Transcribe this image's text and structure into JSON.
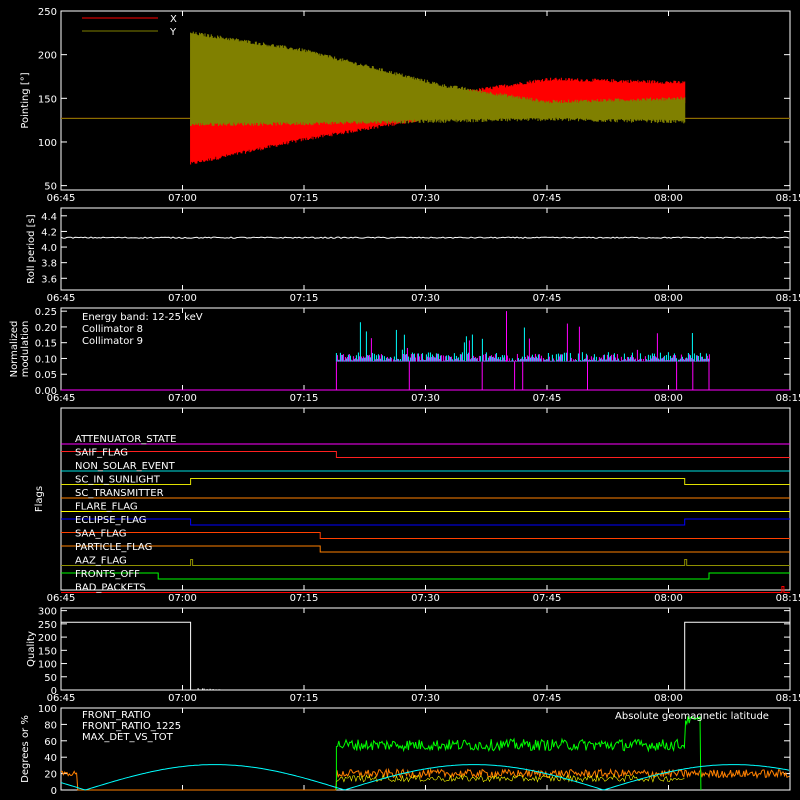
{
  "chart_data": [
    {
      "type": "line",
      "ylabel": "Pointing [°]",
      "ylim": [
        45,
        250
      ],
      "yticks": [
        "50",
        "100",
        "150",
        "200",
        "250"
      ],
      "xticks": [
        "06:45",
        "07:00",
        "07:15",
        "07:30",
        "07:45",
        "08:00",
        "08:15"
      ],
      "xlim_minutes": [
        405,
        495
      ],
      "legend": [
        {
          "label": "X",
          "color": "#ff0000"
        },
        {
          "label": "Y",
          "color": "#808000"
        }
      ],
      "legend_placement": "top-left",
      "series": [
        {
          "name": "X",
          "color": "#ff0000",
          "baseline": 127,
          "t_start": "07:01",
          "t_end": "08:02",
          "envelope_upper": [
            [
              421,
              125
            ],
            [
              435,
              131
            ],
            [
              452,
              153
            ],
            [
              465,
              172
            ],
            [
              482,
              168
            ]
          ],
          "envelope_lower": [
            [
              421,
              75
            ],
            [
              435,
              103
            ],
            [
              452,
              130
            ],
            [
              465,
              138
            ],
            [
              482,
              143
            ]
          ]
        },
        {
          "name": "Y",
          "color": "#808000",
          "baseline": 127,
          "t_start": "07:01",
          "t_end": "08:02",
          "envelope_upper": [
            [
              421,
              225
            ],
            [
              435,
              205
            ],
            [
              452,
              165
            ],
            [
              465,
              146
            ],
            [
              482,
              150
            ]
          ],
          "envelope_lower": [
            [
              421,
              120
            ],
            [
              435,
              121
            ],
            [
              452,
              124
            ],
            [
              465,
              126
            ],
            [
              482,
              123
            ]
          ]
        }
      ]
    },
    {
      "type": "line",
      "ylabel": "Roll period [s]",
      "ylim": [
        3.45,
        4.5
      ],
      "yticks": [
        "3.6",
        "3.8",
        "4.0",
        "4.2",
        "4.4"
      ],
      "xticks": [
        "06:45",
        "07:00",
        "07:15",
        "07:30",
        "07:45",
        "08:00",
        "08:15"
      ],
      "series": [
        {
          "name": "",
          "color": "#ffffff",
          "value": 4.12
        }
      ]
    },
    {
      "type": "bar",
      "ylabel": "Normalized modulation",
      "ylim": [
        0,
        0.26
      ],
      "yticks": [
        "0.00",
        "0.05",
        "0.10",
        "0.15",
        "0.20",
        "0.25"
      ],
      "xticks": [
        "06:45",
        "07:00",
        "07:15",
        "07:30",
        "07:45",
        "08:00",
        "08:15"
      ],
      "legend": [
        {
          "label": "Energy band: 12-25 keV",
          "color": "#ffffff"
        },
        {
          "label": "Collimator 8",
          "color": "#00ffff"
        },
        {
          "label": "Collimator 9",
          "color": "#ff00ff"
        }
      ],
      "legend_placement": "top-left",
      "active_interval": [
        "07:19",
        "08:05"
      ],
      "typical_value": 0.09,
      "max_value": 0.25,
      "dropouts": [
        "07:28",
        "07:37",
        "07:41",
        "07:42",
        "07:50",
        "08:01",
        "08:03"
      ]
    },
    {
      "type": "line",
      "ylabel": "Flags",
      "xticks": [
        "06:45",
        "07:00",
        "07:15",
        "07:30",
        "07:45",
        "08:00",
        "08:15"
      ],
      "flags": [
        {
          "label": "ATTENUATOR_STATE",
          "color": "#ff00ff"
        },
        {
          "label": "SAIF_FLAG",
          "color": "#ff2020",
          "high_until": "07:19"
        },
        {
          "label": "NON_SOLAR_EVENT",
          "color": "#00e0e0"
        },
        {
          "label": "SC_IN_SUNLIGHT",
          "color": "#e0e000",
          "high_from": "07:01",
          "high_until": "08:02"
        },
        {
          "label": "SC_TRANSMITTER",
          "color": "#ff8000"
        },
        {
          "label": "FLARE_FLAG",
          "color": "#ffff00"
        },
        {
          "label": "ECLIPSE_FLAG",
          "color": "#0000ff",
          "high_until": "07:01",
          "high_from_again": "08:02"
        },
        {
          "label": "SAA_FLAG",
          "color": "#ff4000",
          "high_until": "07:17"
        },
        {
          "label": "PARTICLE_FLAG",
          "color": "#ff8000",
          "high_until": "07:17"
        },
        {
          "label": "AAZ_FLAG",
          "color": "#909000",
          "spikes": [
            "07:01",
            "08:02"
          ]
        },
        {
          "label": "FRONTS_OFF",
          "color": "#00ff00",
          "high_until": "06:57",
          "high_from": "08:05"
        },
        {
          "label": "BAD_PACKETS",
          "color": "#ff0000",
          "spikes": [
            "08:14"
          ]
        }
      ]
    },
    {
      "type": "line",
      "ylabel": "Quality",
      "ylim": [
        0,
        310
      ],
      "yticks": [
        "0",
        "50",
        "100",
        "150",
        "200",
        "250",
        "300"
      ],
      "xticks": [
        "06:45",
        "07:00",
        "07:15",
        "07:30",
        "07:45",
        "08:00",
        "08:15"
      ],
      "series": [
        {
          "name": "",
          "color": "#ffffff",
          "high_value": 256,
          "high_until": "07:01",
          "high_from": "08:02",
          "low_value": 0
        }
      ]
    },
    {
      "type": "line",
      "ylabel": "Degrees or %",
      "ylim": [
        0,
        100
      ],
      "yticks": [
        "0",
        "20",
        "40",
        "60",
        "80",
        "100"
      ],
      "xticks": [],
      "annotation": {
        "label": "Absolute geomagnetic latitude",
        "color": "#00ffff"
      },
      "legend": [
        {
          "label": "FRONT_RATIO",
          "color": "#ffff00"
        },
        {
          "label": "FRONT_RATIO_1225",
          "color": "#00ff00"
        },
        {
          "label": "MAX_DET_VS_TOT",
          "color": "#ff8000"
        }
      ],
      "legend_placement": "top-left",
      "series": [
        {
          "name": "FRONT_RATIO",
          "color": "#ffff00"
        },
        {
          "name": "FRONT_RATIO_1225",
          "color": "#00ff00",
          "level": 55,
          "t_start": "07:19",
          "t_end": "08:02"
        },
        {
          "name": "MAX_DET_VS_TOT",
          "color": "#ff8000",
          "level": 20
        },
        {
          "name": "Absolute geomagnetic latitude",
          "color": "#00ffff",
          "peaks": [
            [
              408,
              0
            ],
            [
              422,
              32
            ],
            [
              440,
              0
            ],
            [
              458,
              30
            ],
            [
              470,
              0
            ],
            [
              484,
              25
            ],
            [
              500,
              0
            ]
          ]
        }
      ]
    }
  ]
}
